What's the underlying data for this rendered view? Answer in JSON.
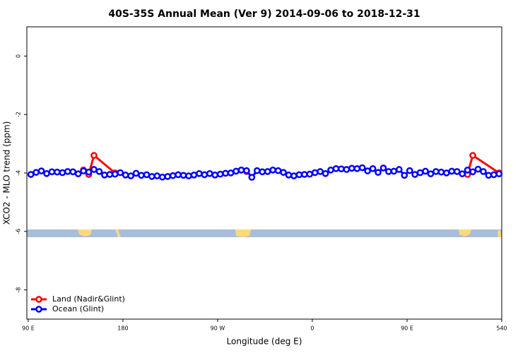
{
  "chart_data": {
    "type": "line",
    "title": "40S-35S Annual Mean (Ver 9)   2014-09-06 to 2018-12-31",
    "x_label": "Longitude (deg E)",
    "y_label": "XCO2 - MLO trend (ppm)",
    "xlim": [
      88.7,
      540
    ],
    "ylim": [
      -9,
      1
    ],
    "xticks": [
      {
        "value": 90,
        "label": "90 E"
      },
      180,
      {
        "value": 270,
        "label": "90 W"
      },
      {
        "value": 360,
        "label": "0"
      },
      {
        "value": 450,
        "label": "90 E"
      },
      540
    ],
    "yticks": [
      0,
      -2,
      -4,
      -6,
      -8
    ],
    "legend": "bottomleft",
    "series": [
      {
        "name": "Land (Nadir&Glint)",
        "color": "#ff0000",
        "x": [
          142.5,
          147.5,
          152.5,
          172.5,
          232.5,
          292.5,
          297.5,
          400,
          507.5,
          512.5,
          537.5
        ],
        "values": [
          -3.9,
          -4.05,
          -3.4,
          -4.0,
          null,
          -3.9,
          -3.95,
          null,
          -4.05,
          -3.4,
          -4.0
        ]
      },
      {
        "name": "Ocean (Glint)",
        "color": "#0000ff",
        "x": [
          92.5,
          97.5,
          102.5,
          107.5,
          112.5,
          117.5,
          122.5,
          127.5,
          132.5,
          137.5,
          142.5,
          147.5,
          152.5,
          157.5,
          162.5,
          167.5,
          172.5,
          177.5,
          182.5,
          187.5,
          192.5,
          197.5,
          202.5,
          207.5,
          212.5,
          217.5,
          222.5,
          227.5,
          232.5,
          237.5,
          242.5,
          247.5,
          252.5,
          257.5,
          262.5,
          267.5,
          272.5,
          277.5,
          282.5,
          287.5,
          292.5,
          297.5,
          302.5,
          307.5,
          312.5,
          317.5,
          322.5,
          327.5,
          332.5,
          337.5,
          342.5,
          347.5,
          352.5,
          357.5,
          362.5,
          367.5,
          372.5,
          377.5,
          382.5,
          387.5,
          392.5,
          397.5,
          402.5,
          407.5,
          412.5,
          417.5,
          422.5,
          427.5,
          432.5,
          437.5,
          442.5,
          447.5,
          452.5,
          457.5,
          462.5,
          467.5,
          472.5,
          477.5,
          482.5,
          487.5,
          492.5,
          497.5,
          502.5,
          507.5,
          512.5,
          517.5,
          522.5,
          527.5,
          532.5,
          537.5
        ],
        "values": [
          -4.05,
          -3.98,
          -3.93,
          -4.02,
          -3.96,
          -3.97,
          -3.99,
          -3.95,
          -3.96,
          -4.03,
          -3.93,
          -3.97,
          -3.88,
          -3.95,
          -4.07,
          -4.05,
          -4.04,
          -3.99,
          -4.07,
          -4.1,
          -4.01,
          -4.08,
          -4.06,
          -4.12,
          -4.1,
          -4.14,
          -4.12,
          -4.09,
          -4.06,
          -4.08,
          -4.1,
          -4.07,
          -4.02,
          -4.06,
          -4.02,
          -4.07,
          -4.04,
          -4.01,
          -4.0,
          -3.94,
          -3.9,
          -3.92,
          -4.15,
          -3.92,
          -3.96,
          -3.95,
          -3.9,
          -3.92,
          -3.98,
          -4.07,
          -4.1,
          -4.06,
          -4.05,
          -4.04,
          -3.99,
          -3.95,
          -4.02,
          -3.9,
          -3.85,
          -3.86,
          -3.88,
          -3.84,
          -3.85,
          -3.82,
          -3.93,
          -3.85,
          -3.98,
          -3.83,
          -3.95,
          -3.94,
          -3.88,
          -4.08,
          -3.92,
          -4.05,
          -3.99,
          -3.94,
          -4.03,
          -3.95,
          -3.97,
          -4.0,
          -3.94,
          -3.95,
          -4.03,
          -3.9,
          -3.96,
          -3.87,
          -3.95,
          -4.08,
          -4.06,
          -4.03
        ]
      }
    ]
  }
}
